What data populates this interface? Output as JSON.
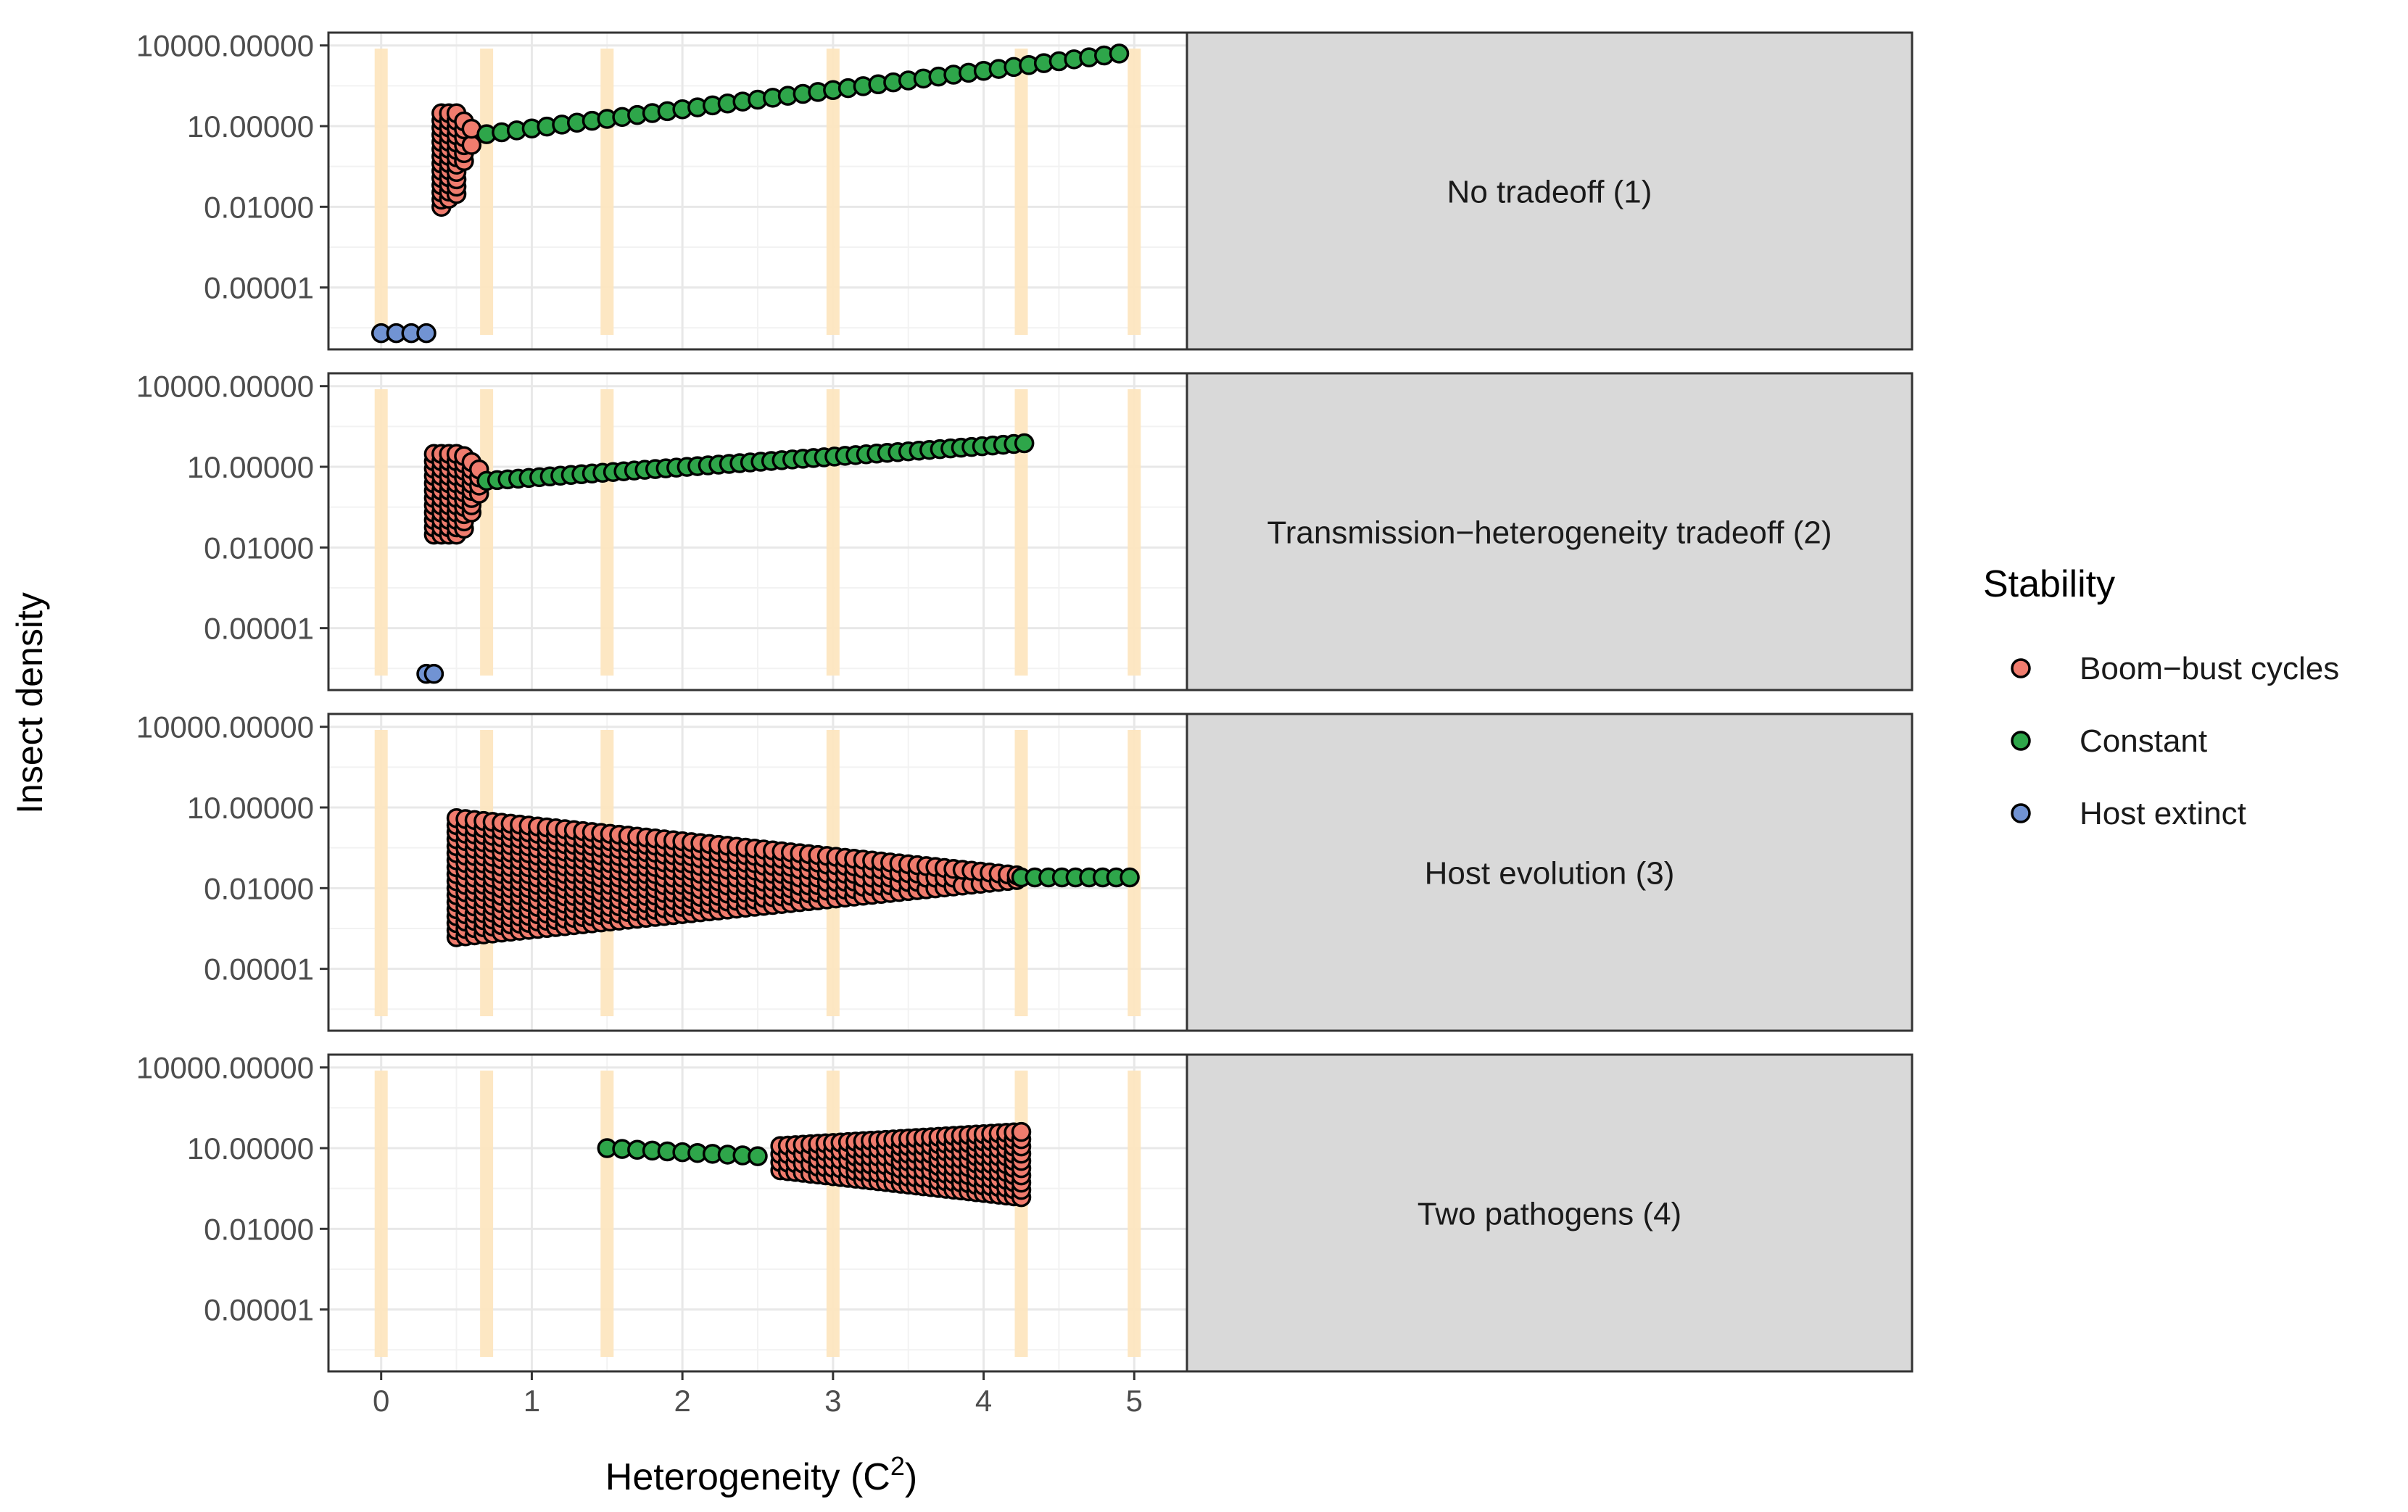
{
  "chart_data": {
    "type": "scatter",
    "xlabel": "Heterogeneity (C",
    "xlabel_sup": "2",
    "xlabel_close": ")",
    "ylabel": "Insect density",
    "x_scale": "linear",
    "y_scale": "log10",
    "xlim": [
      -0.35,
      5.35
    ],
    "ylim": [
      5e-08,
      30000
    ],
    "x_ticks": [
      0,
      1,
      2,
      3,
      4,
      5
    ],
    "x_tick_labels": [
      "0",
      "1",
      "2",
      "3",
      "4",
      "5"
    ],
    "y_ticks": [
      1e-05,
      0.01,
      10,
      10000
    ],
    "y_tick_labels": [
      "0.00001",
      "0.01000",
      "10.00000",
      "10000.00000"
    ],
    "grid": true,
    "facet_strip_position": "right",
    "reference_lines": {
      "x": [
        0,
        0.7,
        1.5,
        3,
        4.25,
        5
      ],
      "color": "#fde6c0"
    },
    "legend": {
      "title": "Stability",
      "position": "right",
      "entries": [
        {
          "label": "Boom−bust cycles",
          "color": "#f07c6e"
        },
        {
          "label": "Constant",
          "color": "#2ea64a"
        },
        {
          "label": "Host extinct",
          "color": "#7193d3"
        }
      ]
    },
    "panels": [
      {
        "label": "No tradeoff (1)",
        "host_extinct": {
          "x": [
            0,
            0.1,
            0.2,
            0.3
          ],
          "y": [
            2e-07,
            2e-07,
            2e-07,
            2e-07
          ]
        },
        "boom_bust": {
          "x": [
            0.4,
            0.45,
            0.5,
            0.55,
            0.6
          ],
          "ymin": [
            0.01,
            0.02,
            0.03,
            0.5,
            2
          ],
          "ymax": [
            30,
            30,
            30,
            15,
            8
          ]
        },
        "constant": {
          "x_start": 0.7,
          "x_end": 4.9,
          "step": 0.1,
          "y_start": 5,
          "y_end": 5000
        }
      },
      {
        "label": "Transmission−heterogeneity tradeoff (2)",
        "host_extinct": {
          "x": [
            0.3,
            0.35
          ],
          "y": [
            2e-07,
            2e-07
          ]
        },
        "boom_bust": {
          "x": [
            0.35,
            0.4,
            0.45,
            0.5,
            0.55,
            0.6,
            0.65
          ],
          "ymin": [
            0.03,
            0.03,
            0.03,
            0.03,
            0.05,
            0.2,
            1
          ],
          "ymax": [
            30,
            30,
            30,
            30,
            25,
            15,
            8
          ]
        },
        "constant": {
          "x_start": 0.7,
          "x_end": 4.25,
          "step": 0.07,
          "y_start": 3,
          "y_end": 75
        }
      },
      {
        "label": "Host evolution (3)",
        "boom_bust": {
          "x_start": 0.5,
          "x_end": 4.2,
          "step": 0.06,
          "ymin_start": 0.00015,
          "ymin_end": 0.02,
          "ymax_start": 4,
          "ymax_end": 0.03
        },
        "constant": {
          "x_start": 4.25,
          "x_end": 5.0,
          "step": 0.09,
          "y_start": 0.025,
          "y_end": 0.025
        }
      },
      {
        "label": "Two pathogens (4)",
        "constant": {
          "x_start": 1.5,
          "x_end": 2.55,
          "step": 0.1,
          "y_start": 10,
          "y_end": 5
        },
        "boom_bust": {
          "x_start": 2.65,
          "x_end": 4.25,
          "step": 0.05,
          "ymin_start": 1.5,
          "ymin_end": 0.15,
          "ymax_start": 12,
          "ymax_end": 40
        }
      }
    ]
  }
}
